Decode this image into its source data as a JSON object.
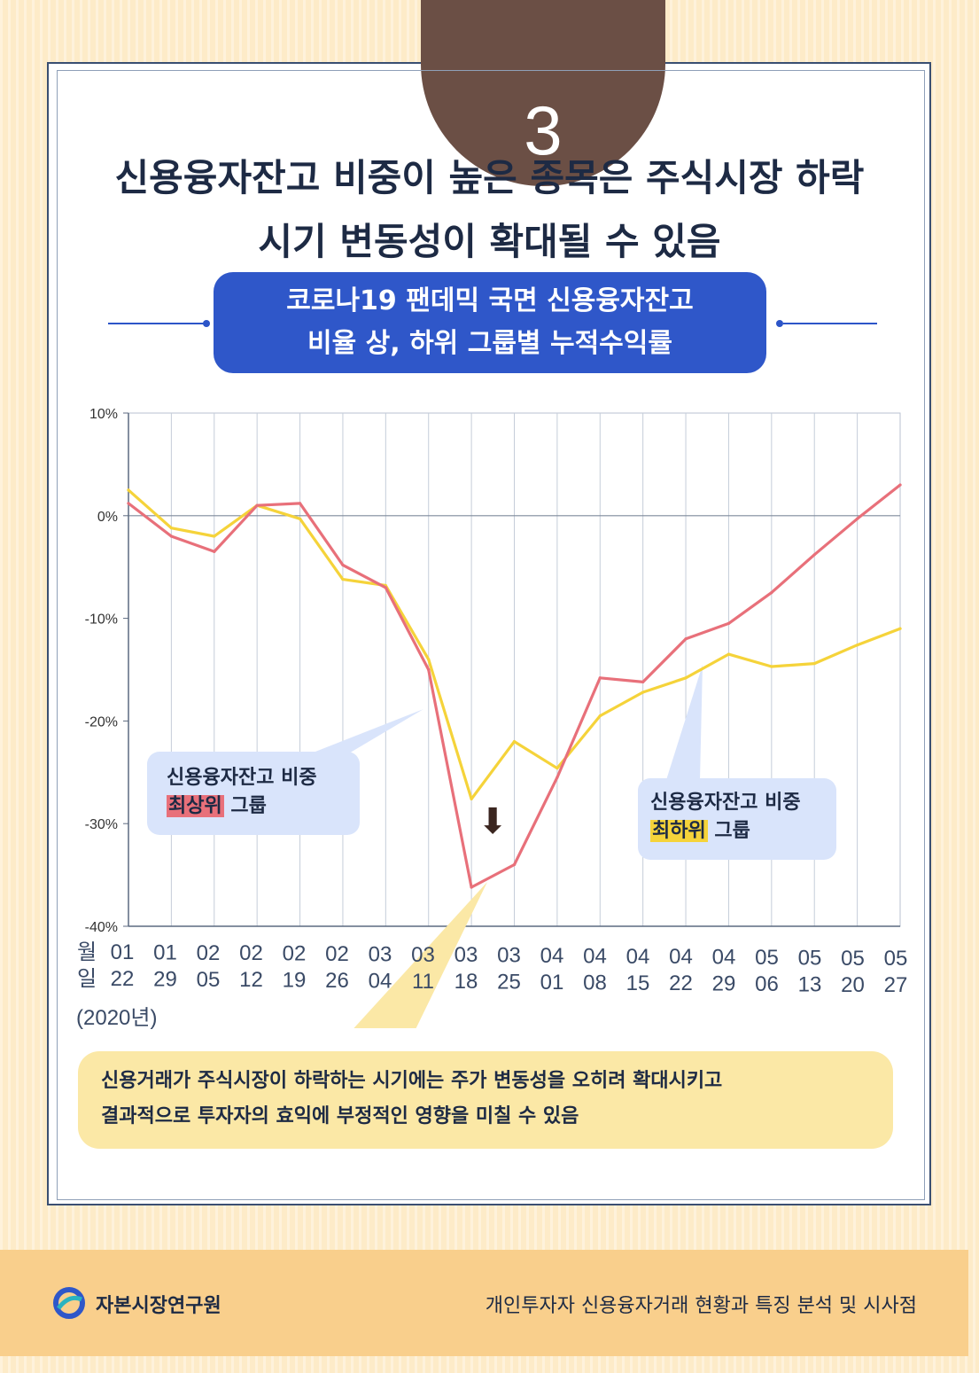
{
  "badge": {
    "number": "3"
  },
  "headline": {
    "line1": "신용융자잔고 비중이 높은 종목은 주식시장 하락",
    "line2": "시기 변동성이 확대될 수 있음"
  },
  "subtitle": {
    "line1": "코로나19 팬데믹 국면 신용융자잔고",
    "line2": "비율 상, 하위 그룹별 누적수익률"
  },
  "chart_data": {
    "type": "line",
    "title": "코로나19 팬데믹 국면 신용융자잔고 비율 상, 하위 그룹별 누적수익률",
    "xlabel_prefix": {
      "month": "월",
      "day": "일"
    },
    "year_label": "(2020년)",
    "categories": [
      {
        "month": "01",
        "day": "22"
      },
      {
        "month": "01",
        "day": "29"
      },
      {
        "month": "02",
        "day": "05"
      },
      {
        "month": "02",
        "day": "12"
      },
      {
        "month": "02",
        "day": "19"
      },
      {
        "month": "02",
        "day": "26"
      },
      {
        "month": "03",
        "day": "04"
      },
      {
        "month": "03",
        "day": "11"
      },
      {
        "month": "03",
        "day": "18"
      },
      {
        "month": "03",
        "day": "25"
      },
      {
        "month": "04",
        "day": "01"
      },
      {
        "month": "04",
        "day": "08"
      },
      {
        "month": "04",
        "day": "15"
      },
      {
        "month": "04",
        "day": "22"
      },
      {
        "month": "04",
        "day": "29"
      },
      {
        "month": "05",
        "day": "06"
      },
      {
        "month": "05",
        "day": "13"
      },
      {
        "month": "05",
        "day": "20"
      },
      {
        "month": "05",
        "day": "27"
      }
    ],
    "y_ticks": [
      "10%",
      "0%",
      "-10%",
      "-20%",
      "-30%",
      "-40%"
    ],
    "ylim": [
      -40,
      10
    ],
    "series": [
      {
        "name": "신용융자잔고 비중 최상위 그룹",
        "color": "#e8707a",
        "values": [
          1.2,
          -2,
          -3.5,
          1,
          1.2,
          -4.8,
          -7,
          -15,
          -36.2,
          -34,
          -25.5,
          -15.8,
          -16.2,
          -12,
          -10.5,
          -7.5,
          -3.8,
          -0.3,
          3
        ]
      },
      {
        "name": "신용융자잔고 비중 최하위 그룹",
        "color": "#f5d33a",
        "values": [
          2.5,
          -1.2,
          -2,
          1,
          -0.3,
          -6.2,
          -6.8,
          -14,
          -27.6,
          -22,
          -24.6,
          -19.5,
          -17.2,
          -15.8,
          -13.5,
          -14.7,
          -14.4,
          -12.6,
          -11
        ]
      }
    ],
    "callouts": {
      "top": {
        "line1": "신용융자잔고 비중",
        "highlight": "최상위",
        "suffix": "그룹"
      },
      "bottom": {
        "line1": "신용융자잔고 비중",
        "highlight": "최하위",
        "suffix": "그룹"
      }
    },
    "annotation_arrow": "⬇"
  },
  "note": {
    "line1": "신용거래가 주식시장이 하락하는 시기에는 주가 변동성을 오히려 확대시키고",
    "line2": "결과적으로 투자자의 효익에 부정적인 영향을 미칠 수 있음"
  },
  "footer": {
    "org": "자본시장연구원",
    "reference": "개인투자자 신용융자거래 현황과 특징 분석 및 시사점"
  },
  "colors": {
    "navy": "#1d2a44",
    "blue": "#2f57c9",
    "brown": "#6b4f45",
    "red": "#e8707a",
    "yellow": "#f5d33a"
  }
}
